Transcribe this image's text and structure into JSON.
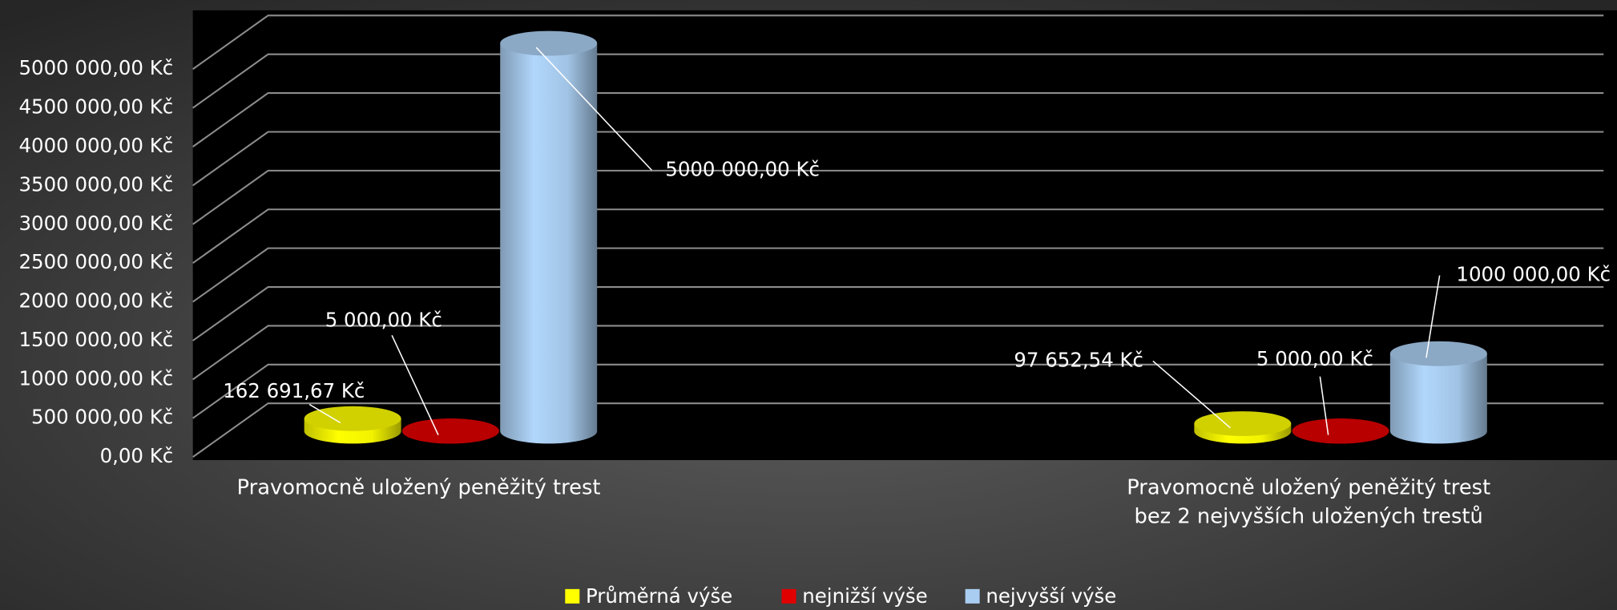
{
  "chart_data": {
    "type": "bar3d",
    "categories": [
      "Pravomocně uložený peněžitý trest",
      "Pravomocně uložený peněžitý trest\nbez 2 nejvyšších uložených trestů"
    ],
    "series": [
      {
        "name": "Průměrná výše",
        "color": "#ffff00",
        "values": [
          162691.67,
          97652.54
        ],
        "value_labels": [
          "162 691,67 Kč",
          "97 652,54 Kč"
        ]
      },
      {
        "name": "nejnižší výše",
        "color": "#e00000",
        "values": [
          5000,
          5000
        ],
        "value_labels": [
          "5 000,00 Kč",
          "5 000,00 Kč"
        ]
      },
      {
        "name": "nejvyšší výše",
        "color": "#a9cdf0",
        "values": [
          5000000,
          1000000
        ],
        "value_labels": [
          "5000 000,00 Kč",
          "1000 000,00 Kč"
        ]
      }
    ],
    "ylim": [
      0,
      5000000
    ],
    "yticks": [
      {
        "value": 0,
        "label": "0,00 Kč"
      },
      {
        "value": 500000,
        "label": "500 000,00 Kč"
      },
      {
        "value": 1000000,
        "label": "1000 000,00 Kč"
      },
      {
        "value": 1500000,
        "label": "1500 000,00 Kč"
      },
      {
        "value": 2000000,
        "label": "2000 000,00 Kč"
      },
      {
        "value": 2500000,
        "label": "2500 000,00 Kč"
      },
      {
        "value": 3000000,
        "label": "3000 000,00 Kč"
      },
      {
        "value": 3500000,
        "label": "3500 000,00 Kč"
      },
      {
        "value": 4000000,
        "label": "4000 000,00 Kč"
      },
      {
        "value": 4500000,
        "label": "4500 000,00 Kč"
      },
      {
        "value": 5000000,
        "label": "5000 000,00 Kč"
      }
    ],
    "grid": true,
    "legend": "bottom"
  }
}
